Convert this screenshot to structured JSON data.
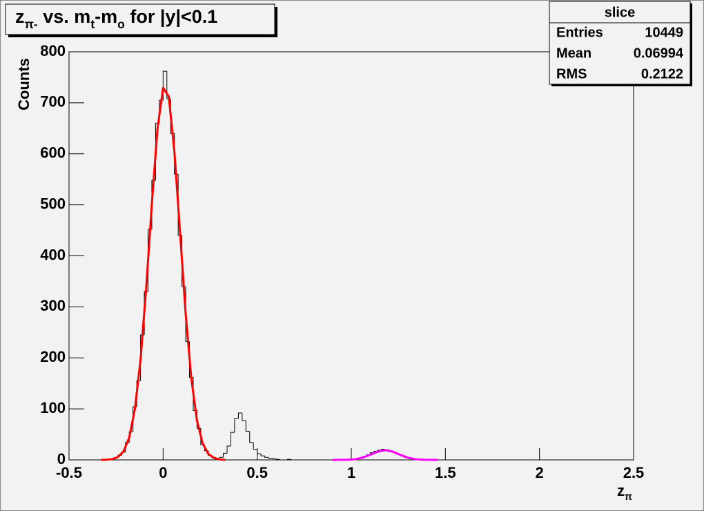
{
  "chart_data": {
    "type": "histogram",
    "title": [
      {
        "text": "z"
      },
      {
        "text": "π-",
        "sub": true
      },
      {
        "text": " vs. m"
      },
      {
        "text": "t",
        "sub": true
      },
      {
        "text": "-m"
      },
      {
        "text": "o",
        "sub": true
      },
      {
        "text": " for |y|<0.1"
      }
    ],
    "x_label": [
      {
        "text": "z"
      },
      {
        "text": "π",
        "sub": true
      }
    ],
    "y_label": "Counts",
    "bins": [
      -0.3,
      -0.28,
      -0.26,
      -0.24,
      -0.22,
      -0.2,
      -0.18,
      -0.16,
      -0.14,
      -0.12,
      -0.1,
      -0.08,
      -0.06,
      -0.04,
      -0.02,
      0,
      0.02,
      0.04,
      0.06,
      0.08,
      0.1,
      0.12,
      0.14,
      0.16,
      0.18,
      0.2,
      0.22,
      0.24,
      0.26,
      0.28,
      0.3,
      0.32,
      0.34,
      0.36,
      0.38,
      0.4,
      0.42,
      0.44,
      0.46,
      0.48,
      0.5,
      0.52,
      0.54,
      0.56,
      0.58,
      0.6,
      0.62,
      0.64,
      0.66,
      0.68,
      0.7,
      0.72,
      0.74,
      0.76,
      0.78,
      0.8,
      0.82,
      0.84,
      0.86,
      0.88,
      0.9,
      0.92,
      0.94,
      0.96,
      0.98,
      1,
      1.02,
      1.04,
      1.06,
      1.08,
      1.1,
      1.12,
      1.14,
      1.16,
      1.18,
      1.2,
      1.22,
      1.24,
      1.26,
      1.28,
      1.3,
      1.32,
      1.34,
      1.36,
      1.38,
      1.4
    ],
    "values": [
      1,
      2,
      4,
      9,
      15,
      34,
      55,
      104,
      155,
      245,
      330,
      452,
      548,
      660,
      705,
      762,
      708,
      640,
      560,
      440,
      340,
      232,
      162,
      97,
      62,
      30,
      18,
      9,
      5,
      3,
      5,
      13,
      27,
      54,
      81,
      92,
      77,
      56,
      34,
      21,
      12,
      8,
      5,
      3,
      2,
      1,
      0,
      0,
      1,
      0,
      0,
      0,
      0,
      0,
      0,
      0,
      0,
      0,
      0,
      0,
      0,
      0,
      0,
      0,
      0,
      0,
      2,
      4,
      7,
      10,
      14,
      17,
      19,
      21,
      20,
      18,
      15,
      11,
      8,
      5,
      3,
      2,
      1,
      0,
      0
    ],
    "color": "#000000",
    "curves": [
      {
        "color": "#ff0000",
        "x": [
          -0.33,
          -0.3,
          -0.27,
          -0.24,
          -0.21,
          -0.18,
          -0.15,
          -0.12,
          -0.09,
          -0.06,
          -0.03,
          0,
          0.03,
          0.06,
          0.09,
          0.12,
          0.15,
          0.18,
          0.21,
          0.24,
          0.27,
          0.3,
          0.33
        ],
        "values": [
          0.1,
          0.4,
          1.6,
          5.6,
          16.8,
          43.8,
          99.5,
          196.3,
          336.6,
          501.3,
          648.6,
          729.3,
          712.4,
          604.6,
          445.8,
          285.8,
          159.1,
          76.8,
          32.3,
          11.8,
          3.7,
          1.0,
          0.2
        ]
      },
      {
        "color": "#ff00ff",
        "x": [
          0.9,
          0.94,
          0.98,
          1.02,
          1.06,
          1.1,
          1.14,
          1.18,
          1.22,
          1.26,
          1.3,
          1.34,
          1.38,
          1.42,
          1.46
        ],
        "values": [
          0,
          0.1,
          0.3,
          1.4,
          4.4,
          9.9,
          16.1,
          19,
          16.1,
          9.9,
          4.4,
          1.4,
          0.3,
          0.1,
          0
        ]
      }
    ],
    "xlim": [
      -0.5,
      2.5
    ],
    "xticks": [
      -0.5,
      0,
      0.5,
      1,
      1.5,
      2,
      2.5
    ],
    "ylim": [
      0,
      800
    ],
    "yticks": [
      0,
      100,
      200,
      300,
      400,
      500,
      600,
      700,
      800
    ],
    "stats": {
      "title": "slice",
      "rows": [
        [
          "Entries",
          10449
        ],
        [
          "Mean",
          0.06994
        ],
        [
          "RMS",
          0.2122
        ]
      ]
    }
  }
}
